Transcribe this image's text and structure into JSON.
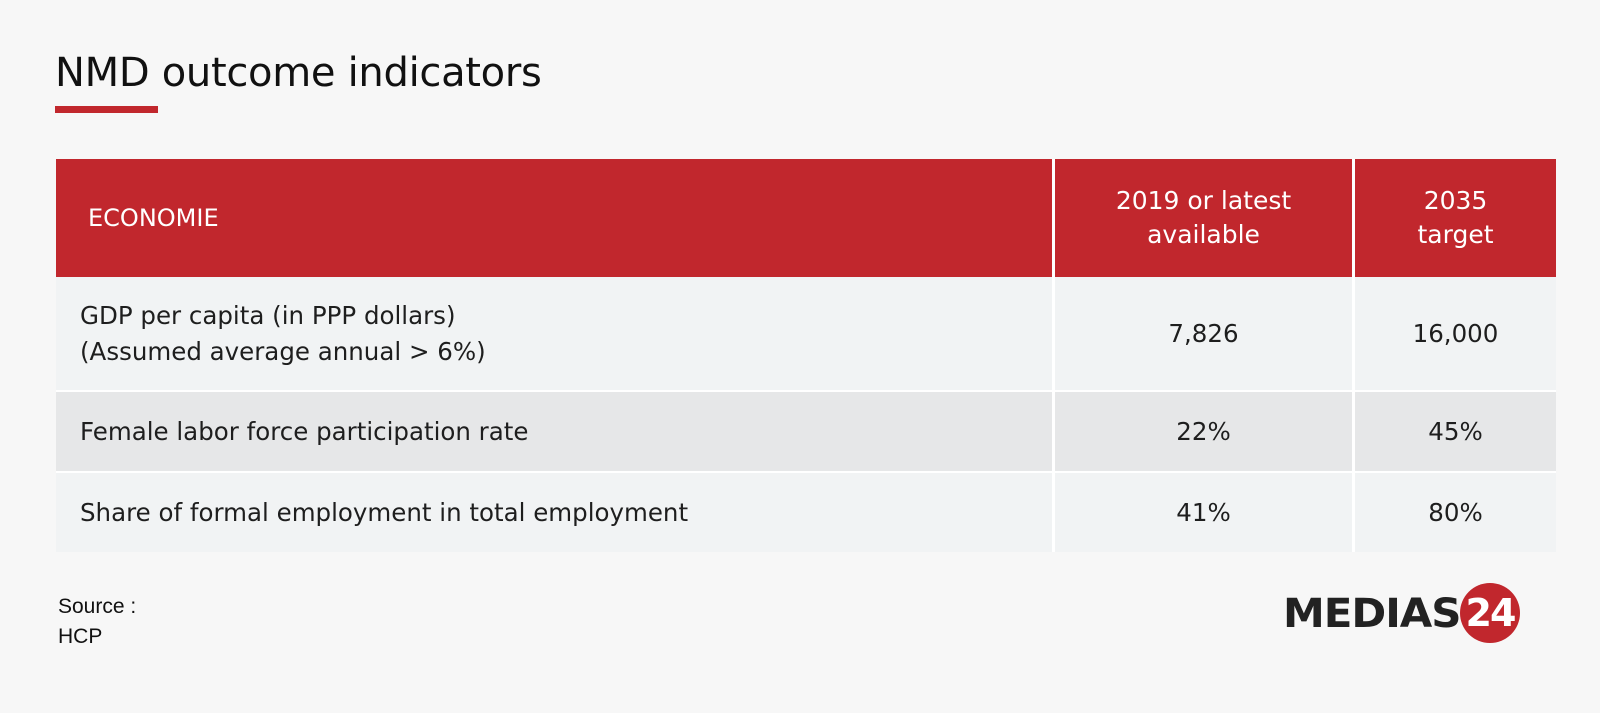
{
  "title": "NMD outcome indicators",
  "colors": {
    "accent": "#c1272d",
    "row_light": "#f1f3f4",
    "row_dark": "#e6e7e8",
    "background": "#f7f7f7"
  },
  "chart_data": {
    "type": "table",
    "columns": [
      "ECONOMIE",
      "2019 or latest available",
      "2035 target"
    ],
    "header": {
      "label": "ECONOMIE",
      "latest_lines": [
        "2019 or latest",
        "available"
      ],
      "target_lines": [
        "2035",
        "target"
      ]
    },
    "rows": [
      {
        "label_lines": [
          "GDP per capita (in PPP dollars)",
          "(Assumed average annual > 6%)"
        ],
        "latest": "7,826",
        "target": "16,000"
      },
      {
        "label_lines": [
          "Female labor force participation rate"
        ],
        "latest": "22%",
        "target": "45%"
      },
      {
        "label_lines": [
          "Share of formal employment in total employment"
        ],
        "latest": "41%",
        "target": "80%"
      }
    ]
  },
  "source": {
    "label": "Source :",
    "value": "HCP"
  },
  "logo": {
    "text": "MEDIAS",
    "badge": "24"
  }
}
